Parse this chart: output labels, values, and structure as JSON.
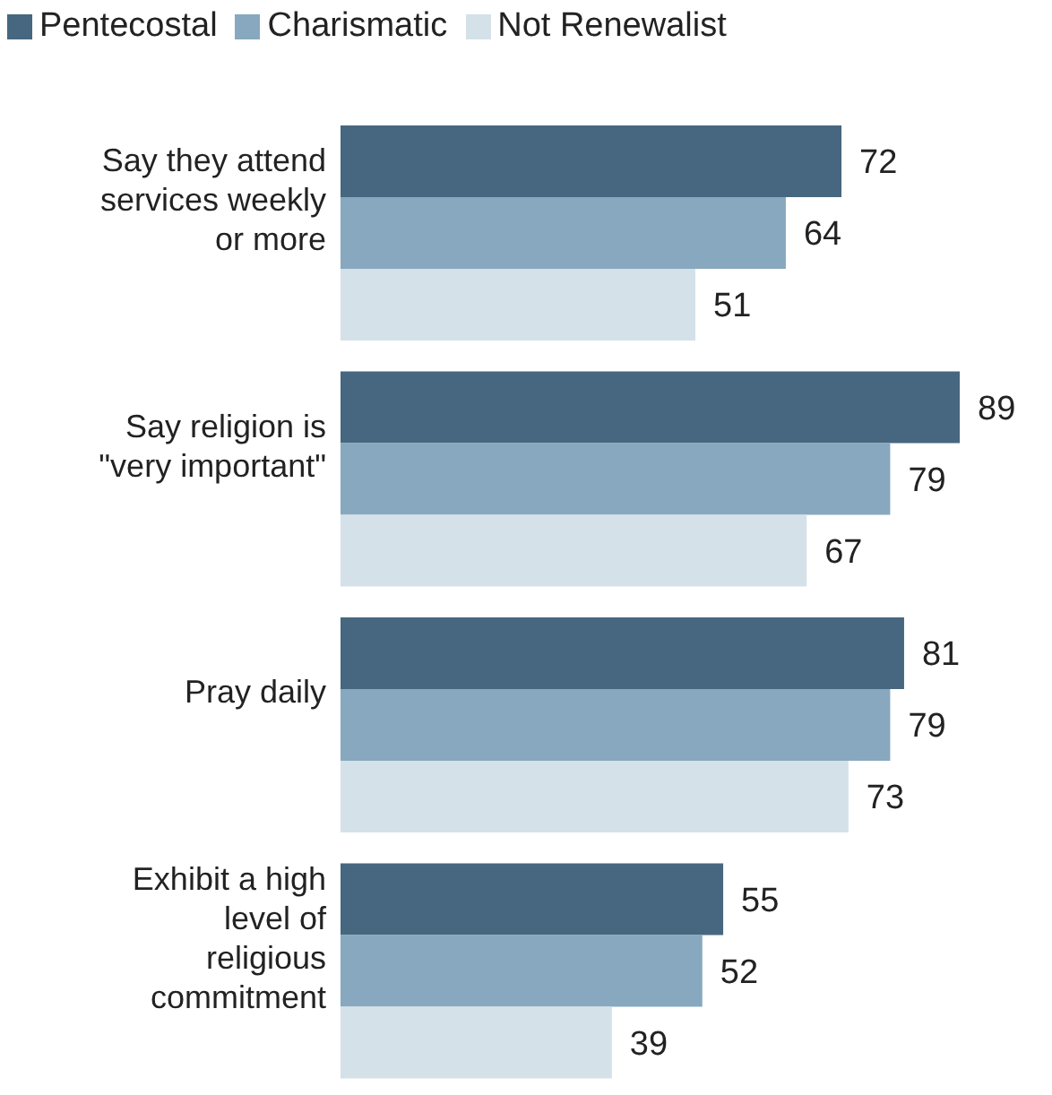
{
  "chart_data": {
    "type": "bar",
    "orientation": "horizontal",
    "categories": [
      "Say they attend services weekly or more",
      "Say religion is \"very important\"",
      "Pray daily",
      "Exhibit a high level of religious commitment"
    ],
    "series": [
      {
        "name": "Pentecostal",
        "color": "#46677f",
        "values": [
          72,
          89,
          81,
          55
        ]
      },
      {
        "name": "Charismatic",
        "color": "#87a8bf",
        "values": [
          64,
          79,
          79,
          52
        ]
      },
      {
        "name": "Not Renewalist",
        "color": "#d4e1e9",
        "values": [
          51,
          67,
          73,
          39
        ]
      }
    ],
    "data_labels": true,
    "legend": "top left",
    "grid": false
  }
}
